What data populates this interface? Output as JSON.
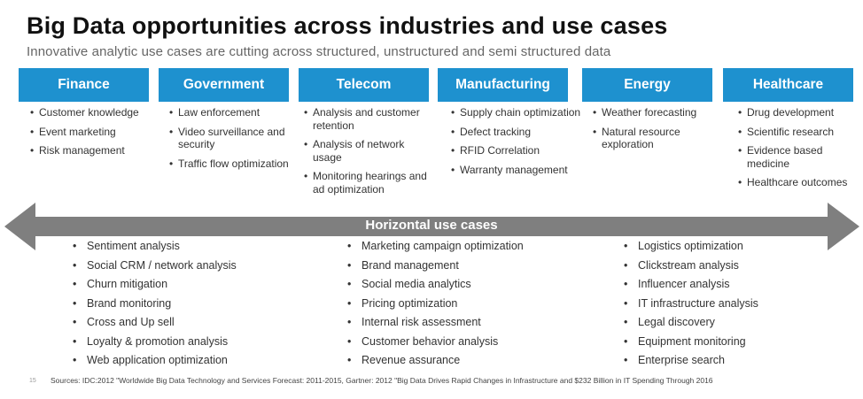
{
  "title": "Big Data opportunities across industries and use cases",
  "subtitle": "Innovative analytic use cases are cutting across structured, unstructured and semi structured data",
  "industries": [
    {
      "name": "Finance",
      "items": [
        "Customer knowledge",
        "Event marketing",
        "Risk management"
      ]
    },
    {
      "name": "Government",
      "items": [
        "Law enforcement",
        "Video surveillance and security",
        "Traffic flow optimization"
      ]
    },
    {
      "name": "Telecom",
      "items": [
        "Analysis and customer retention",
        "Analysis of network usage",
        "Monitoring hearings and ad optimization"
      ]
    },
    {
      "name": "Manufacturing",
      "items": [
        "Supply chain optimization",
        "Defect tracking",
        "RFID Correlation",
        "Warranty management"
      ]
    },
    {
      "name": "Energy",
      "items": [
        "Weather forecasting",
        "Natural resource exploration"
      ]
    },
    {
      "name": "Healthcare",
      "items": [
        "Drug development",
        "Scientific research",
        "Evidence based medicine",
        "Healthcare outcomes"
      ]
    }
  ],
  "horizontal": {
    "label": "Horizontal use cases",
    "columns": [
      [
        "Sentiment analysis",
        "Social CRM / network analysis",
        "Churn mitigation",
        "Brand monitoring",
        "Cross and Up sell",
        "Loyalty & promotion analysis",
        "Web application optimization"
      ],
      [
        "Marketing campaign optimization",
        "Brand management",
        "Social media analytics",
        "Pricing optimization",
        "Internal risk assessment",
        "Customer behavior analysis",
        "Revenue assurance"
      ],
      [
        "Logistics optimization",
        "Clickstream analysis",
        "Influencer analysis",
        "IT infrastructure analysis",
        "Legal discovery",
        "Equipment monitoring",
        "Enterprise search"
      ]
    ]
  },
  "sources": "Sources: IDC:2012 \"Worldwide Big Data Technology and Services Forecast: 2011-2015, Gartner: 2012 \"Big Data Drives Rapid Changes in Infrastructure and $232 Billion in IT Spending Through 2016",
  "page_number": "15",
  "colors": {
    "header_blue": "#1e91cf",
    "arrow_gray": "#7f7f7f"
  }
}
